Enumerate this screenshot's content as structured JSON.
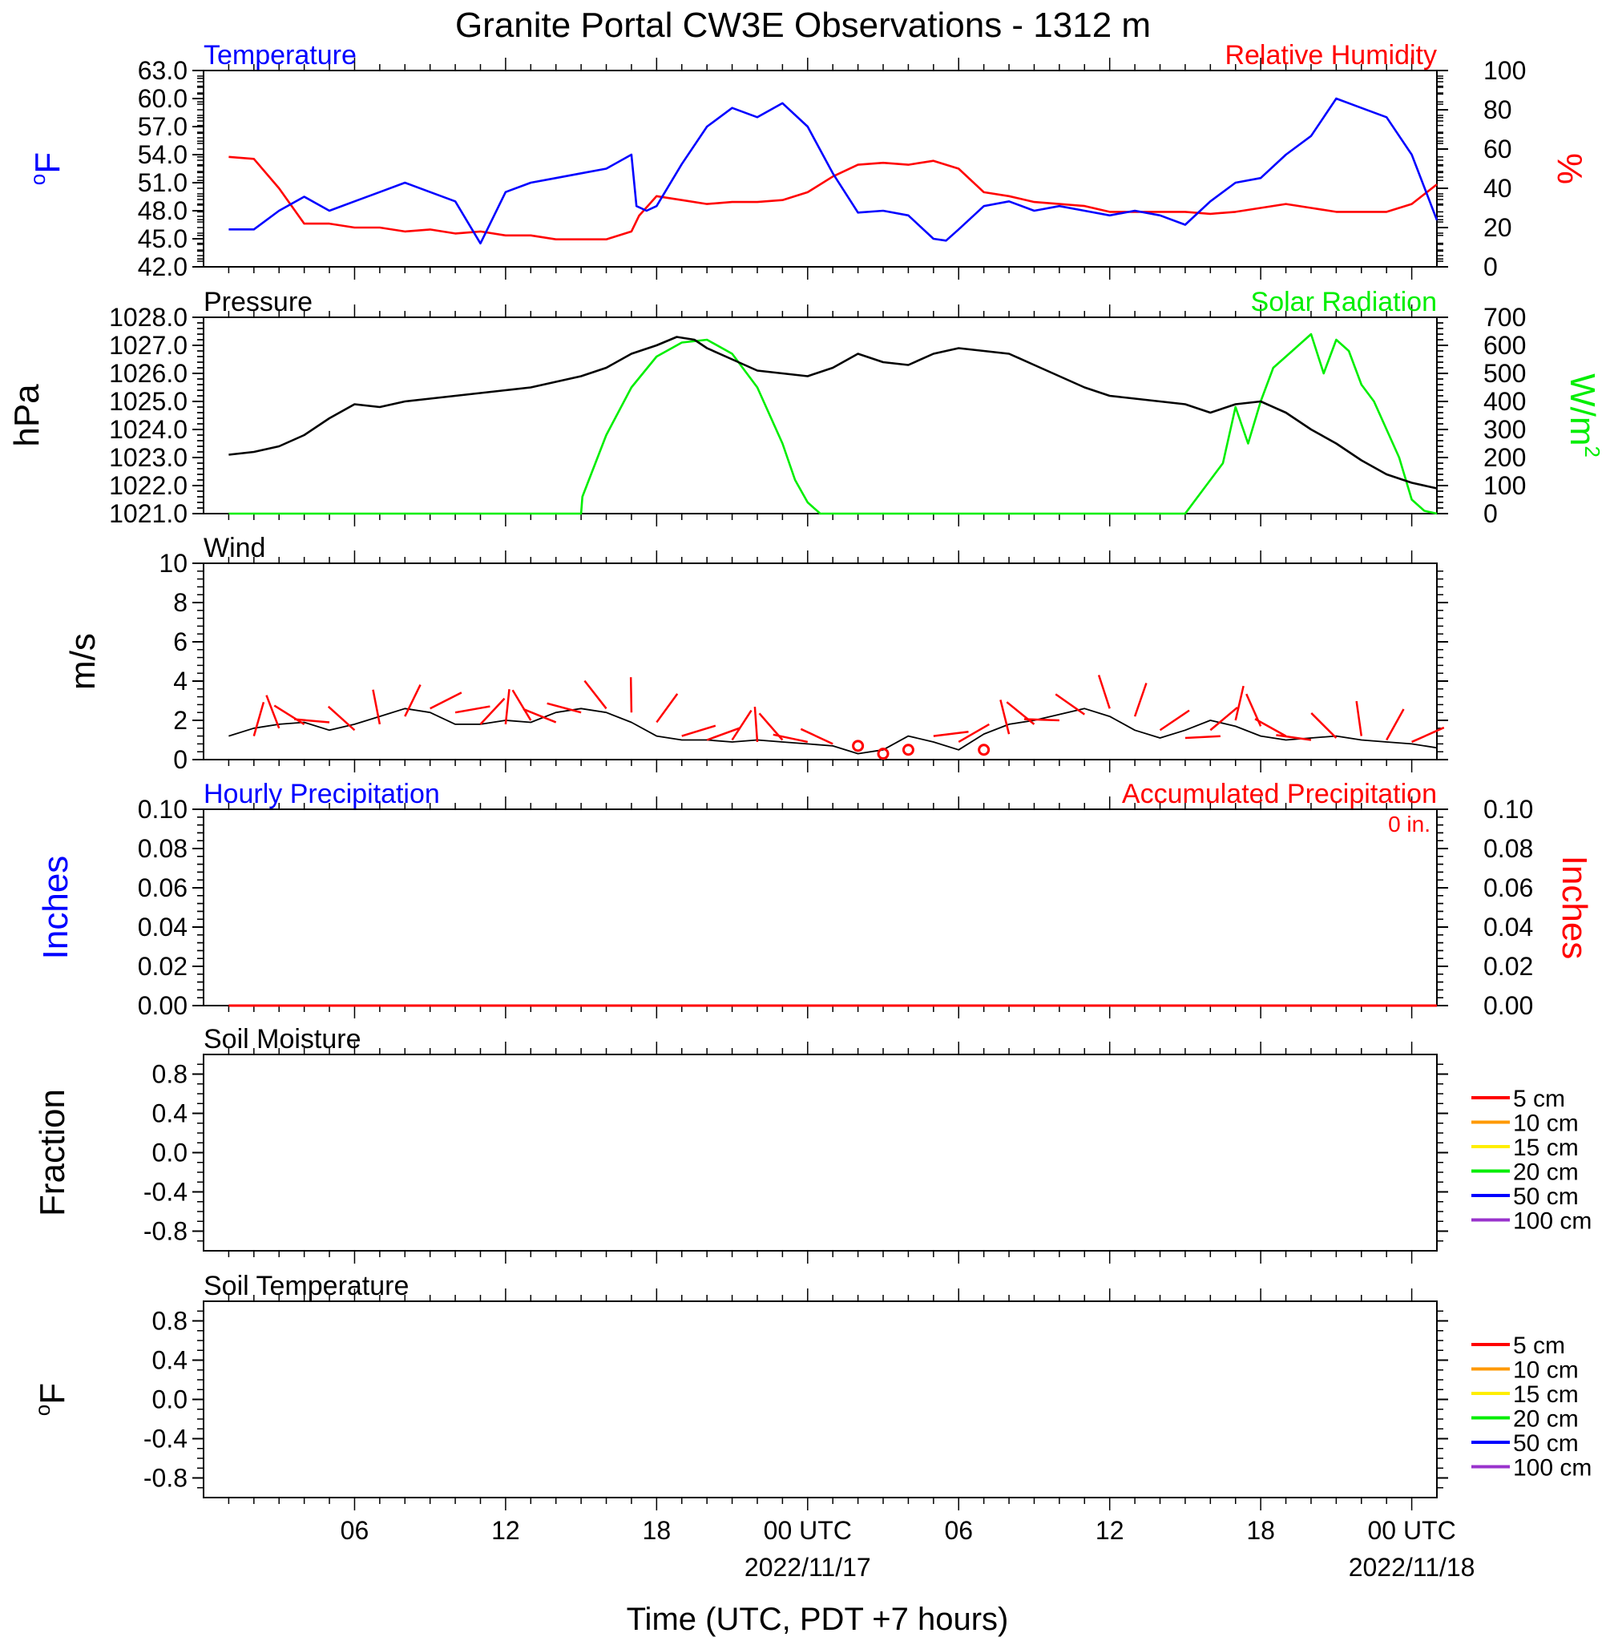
{
  "title": "Granite Portal CW3E Observations - 1312 m",
  "xlabel": "Time (UTC, PDT +7 hours)",
  "x_ticks": [
    {
      "hour": 6,
      "label": "06",
      "sublabel": ""
    },
    {
      "hour": 12,
      "label": "12",
      "sublabel": ""
    },
    {
      "hour": 18,
      "label": "18",
      "sublabel": ""
    },
    {
      "hour": 24,
      "label": "00 UTC",
      "sublabel": "2022/11/17"
    },
    {
      "hour": 30,
      "label": "06",
      "sublabel": ""
    },
    {
      "hour": 36,
      "label": "12",
      "sublabel": ""
    },
    {
      "hour": 42,
      "label": "18",
      "sublabel": ""
    },
    {
      "hour": 48,
      "label": "00 UTC",
      "sublabel": "2022/11/18"
    }
  ],
  "colors": {
    "temperature": "#0000ff",
    "humidity": "#ff0000",
    "pressure": "#000000",
    "solar": "#00ee00",
    "wind": "#000000",
    "wind_barb": "#ff0000",
    "accum_precip": "#ff0000",
    "hourly_precip": "#0000ff"
  },
  "chart_data": [
    {
      "id": "temp-rh",
      "type": "line",
      "title_left": "Temperature",
      "title_right": "Relative Humidity",
      "ylabel_left": "oF",
      "ylabel_right": "%",
      "ylim_left": [
        42,
        63
      ],
      "ylim_right": [
        0,
        100
      ],
      "yticks_left": [
        "42.0",
        "45.0",
        "48.0",
        "51.0",
        "54.0",
        "57.0",
        "60.0",
        "63.0"
      ],
      "yticks_right": [
        "0",
        "20",
        "40",
        "60",
        "80",
        "100"
      ],
      "series": [
        {
          "name": "Temperature",
          "axis": "left",
          "x": [
            1,
            2,
            3,
            4,
            5,
            6,
            7,
            8,
            9,
            10,
            11,
            12,
            13,
            14,
            15,
            16,
            17,
            17.2,
            17.6,
            18,
            19,
            20,
            21,
            22,
            23,
            24,
            25,
            26,
            27,
            28,
            29,
            29.5,
            30,
            31,
            32,
            33,
            34,
            35,
            36,
            37,
            38,
            39,
            40,
            41,
            42,
            43,
            44,
            45,
            46,
            47,
            48,
            49
          ],
          "y": [
            46,
            46,
            48,
            49.5,
            48,
            49,
            50,
            51,
            50,
            49,
            44.5,
            50,
            51,
            51.5,
            52,
            52.5,
            54,
            48.5,
            48,
            48.5,
            53,
            57,
            59,
            58,
            59.5,
            57,
            52,
            47.8,
            48,
            47.5,
            45,
            44.8,
            46,
            48.5,
            49,
            48,
            48.5,
            48,
            47.5,
            48,
            47.5,
            46.5,
            49,
            51,
            51.5,
            54,
            56,
            60,
            59,
            58,
            54,
            47
          ]
        },
        {
          "name": "Relative Humidity",
          "axis": "right",
          "x": [
            1,
            2,
            3,
            4,
            5,
            6,
            7,
            8,
            9,
            10,
            11,
            12,
            13,
            14,
            15,
            16,
            17,
            17.3,
            18,
            19,
            20,
            21,
            22,
            23,
            24,
            25,
            26,
            27,
            28,
            29,
            30,
            31,
            32,
            33,
            34,
            35,
            36,
            37,
            38,
            39,
            40,
            41,
            42,
            43,
            44,
            45,
            46,
            47,
            48,
            49
          ],
          "y": [
            56,
            55,
            40,
            22,
            22,
            20,
            20,
            18,
            19,
            17,
            18,
            16,
            16,
            14,
            14,
            14,
            18,
            26,
            36,
            34,
            32,
            33,
            33,
            34,
            38,
            46,
            52,
            53,
            52,
            54,
            50,
            38,
            36,
            33,
            32,
            31,
            28,
            28,
            28,
            28,
            27,
            28,
            30,
            32,
            30,
            28,
            28,
            28,
            32,
            42
          ]
        }
      ]
    },
    {
      "id": "pressure-solar",
      "type": "line",
      "title_left": "Pressure",
      "title_right": "Solar Radiation",
      "ylabel_left": "hPa",
      "ylabel_right": "W/m2",
      "ylim_left": [
        1021,
        1028
      ],
      "ylim_right": [
        0,
        700
      ],
      "yticks_left": [
        "1021.0",
        "1022.0",
        "1023.0",
        "1024.0",
        "1025.0",
        "1026.0",
        "1027.0",
        "1028.0"
      ],
      "yticks_right": [
        "0",
        "100",
        "200",
        "300",
        "400",
        "500",
        "600",
        "700"
      ],
      "series": [
        {
          "name": "Pressure",
          "axis": "left",
          "x": [
            1,
            2,
            3,
            4,
            5,
            6,
            7,
            8,
            9,
            10,
            11,
            12,
            13,
            14,
            15,
            16,
            17,
            18,
            18.8,
            19.5,
            20,
            21,
            22,
            23,
            24,
            25,
            26,
            27,
            28,
            29,
            30,
            31,
            32,
            33,
            34,
            35,
            36,
            37,
            38,
            39,
            40,
            41,
            42,
            43,
            44,
            45,
            46,
            47,
            48,
            49
          ],
          "y": [
            1023.1,
            1023.2,
            1023.4,
            1023.8,
            1024.4,
            1024.9,
            1024.8,
            1025.0,
            1025.1,
            1025.2,
            1025.3,
            1025.4,
            1025.5,
            1025.7,
            1025.9,
            1026.2,
            1026.7,
            1027.0,
            1027.3,
            1027.2,
            1026.9,
            1026.5,
            1026.1,
            1026.0,
            1025.9,
            1026.2,
            1026.7,
            1026.4,
            1026.3,
            1026.7,
            1026.9,
            1026.8,
            1026.7,
            1026.3,
            1025.9,
            1025.5,
            1025.2,
            1025.1,
            1025.0,
            1024.9,
            1024.6,
            1024.9,
            1025.0,
            1024.6,
            1024.0,
            1023.5,
            1022.9,
            1022.4,
            1022.1,
            1021.9
          ]
        },
        {
          "name": "Solar Radiation",
          "axis": "right",
          "x": [
            1,
            15,
            15.05,
            16,
            17,
            18,
            19,
            20,
            21,
            22,
            23,
            23.5,
            24,
            24.5,
            24.6,
            25,
            38,
            39,
            40,
            40.5,
            41,
            41.5,
            42,
            42.5,
            43,
            43.5,
            44,
            44.5,
            45,
            45.5,
            46,
            46.5,
            47,
            47.5,
            48,
            48.5,
            49
          ],
          "y": [
            0,
            0,
            60,
            280,
            450,
            560,
            610,
            620,
            570,
            450,
            250,
            120,
            40,
            0,
            0,
            0,
            0,
            0,
            120,
            180,
            380,
            250,
            400,
            520,
            560,
            600,
            640,
            500,
            620,
            580,
            460,
            400,
            300,
            200,
            50,
            10,
            0
          ]
        }
      ]
    },
    {
      "id": "wind",
      "type": "line",
      "title": "Wind",
      "ylabel": "m/s",
      "ylim": [
        0,
        10
      ],
      "yticks": [
        "0",
        "2",
        "4",
        "6",
        "8",
        "10"
      ],
      "series": [
        {
          "name": "Wind",
          "x": [
            1,
            2,
            3,
            4,
            5,
            6,
            7,
            8,
            9,
            10,
            11,
            12,
            13,
            14,
            15,
            16,
            17,
            18,
            19,
            20,
            21,
            22,
            23,
            24,
            25,
            26,
            27,
            28,
            29,
            30,
            31,
            32,
            33,
            34,
            35,
            36,
            37,
            38,
            39,
            40,
            41,
            42,
            43,
            44,
            45,
            46,
            47,
            48,
            49
          ],
          "y": [
            1.2,
            1.6,
            1.8,
            1.9,
            1.5,
            1.8,
            2.2,
            2.6,
            2.4,
            1.8,
            1.8,
            2.0,
            1.9,
            2.4,
            2.6,
            2.4,
            1.9,
            1.2,
            1.0,
            1.0,
            0.9,
            1.0,
            0.9,
            0.8,
            0.7,
            0.3,
            0.5,
            1.2,
            0.9,
            0.5,
            1.3,
            1.8,
            2.0,
            2.3,
            2.6,
            2.2,
            1.5,
            1.1,
            1.5,
            2.0,
            1.7,
            1.2,
            1.0,
            1.1,
            1.2,
            1.0,
            0.9,
            0.8,
            0.6
          ]
        }
      ]
    },
    {
      "id": "precip",
      "type": "line",
      "title_left": "Hourly Precipitation",
      "title_right": "Accumulated Precipitation",
      "annotation": "0 in.",
      "ylabel_left": "Inches",
      "ylabel_right": "Inches",
      "ylim_left": [
        0,
        0.1
      ],
      "ylim_right": [
        0,
        0.1
      ],
      "yticks_left": [
        "0.00",
        "0.02",
        "0.04",
        "0.06",
        "0.08",
        "0.10"
      ],
      "yticks_right": [
        "0.00",
        "0.02",
        "0.04",
        "0.06",
        "0.08",
        "0.10"
      ],
      "series": [
        {
          "name": "Accumulated Precipitation",
          "axis": "right",
          "x": [
            1,
            49
          ],
          "y": [
            0,
            0
          ]
        }
      ]
    },
    {
      "id": "soil-moisture",
      "type": "line",
      "title": "Soil Moisture",
      "ylabel": "Fraction",
      "ylim": [
        -1,
        1
      ],
      "yticks": [
        "-0.8",
        "-0.4",
        "0.0",
        "0.4",
        "0.8"
      ],
      "legend": [
        "5 cm",
        "10 cm",
        "15 cm",
        "20 cm",
        "50 cm",
        "100 cm"
      ],
      "legend_colors": [
        "#ff0000",
        "#ff9900",
        "#ffee00",
        "#00ee00",
        "#0000ff",
        "#9933cc"
      ],
      "series": []
    },
    {
      "id": "soil-temperature",
      "type": "line",
      "title": "Soil Temperature",
      "ylabel": "oF",
      "ylim": [
        -1,
        1
      ],
      "yticks": [
        "-0.8",
        "-0.4",
        "0.0",
        "0.4",
        "0.8"
      ],
      "legend": [
        "5 cm",
        "10 cm",
        "15 cm",
        "20 cm",
        "50 cm",
        "100 cm"
      ],
      "legend_colors": [
        "#ff0000",
        "#ff9900",
        "#ffee00",
        "#00ee00",
        "#0000ff",
        "#9933cc"
      ],
      "series": []
    }
  ]
}
